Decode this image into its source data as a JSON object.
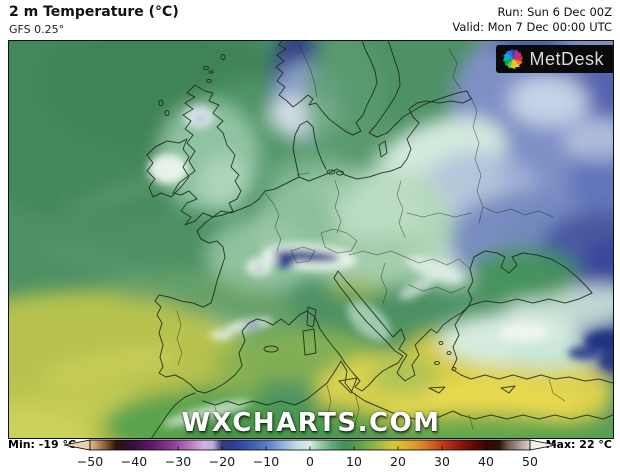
{
  "header": {
    "title": "2 m Temperature (°C)",
    "model": "GFS 0.25°",
    "run": "Run: Sun 6 Dec 00Z",
    "valid": "Valid: Mon 7 Dec 00:00 UTC"
  },
  "logo": {
    "text": "MetDesk",
    "pinwheel_colors": [
      "#e63b2e",
      "#f07d23",
      "#f5c518",
      "#bfd730",
      "#6abf4b",
      "#00a551",
      "#00b3a9",
      "#00aeef",
      "#3b6ce7",
      "#4b3f9e",
      "#8e3f98",
      "#d4237a"
    ]
  },
  "map": {
    "watermark": "WXCHARTS.COM",
    "region": "Europe"
  },
  "scalebar": {
    "min_label": "Min: -19 °C",
    "max_label": "Max: 22 °C",
    "unit": "°C",
    "range": [
      -50,
      50
    ],
    "ticks": [
      -50,
      -40,
      -30,
      -20,
      -10,
      0,
      10,
      20,
      30,
      40,
      50
    ],
    "arrow_left_color": "#e8d2af",
    "arrow_right_color": "#f3ede7",
    "gradient_stops": [
      {
        "t": -50,
        "c": "#e0bd92"
      },
      {
        "t": -47,
        "c": "#9c6a40"
      },
      {
        "t": -44,
        "c": "#2a1209"
      },
      {
        "t": -41,
        "c": "#330f33"
      },
      {
        "t": -36,
        "c": "#5d1a66"
      },
      {
        "t": -31,
        "c": "#8f3f98"
      },
      {
        "t": -27,
        "c": "#b97fc1"
      },
      {
        "t": -24,
        "c": "#d4b5dc"
      },
      {
        "t": -22,
        "c": "#b5afd2"
      },
      {
        "t": -20,
        "c": "#39387f"
      },
      {
        "t": -17,
        "c": "#2e3f95"
      },
      {
        "t": -13,
        "c": "#3f60b0"
      },
      {
        "t": -9,
        "c": "#6287ca"
      },
      {
        "t": -6,
        "c": "#93b6db"
      },
      {
        "t": -3,
        "c": "#c2dde2"
      },
      {
        "t": 0,
        "c": "#d9ece2"
      },
      {
        "t": 2,
        "c": "#a2cfb0"
      },
      {
        "t": 5,
        "c": "#63a97a"
      },
      {
        "t": 8,
        "c": "#3f8f58"
      },
      {
        "t": 11,
        "c": "#57a04e"
      },
      {
        "t": 14,
        "c": "#85b244"
      },
      {
        "t": 17,
        "c": "#b3c03c"
      },
      {
        "t": 19,
        "c": "#d3ca36"
      },
      {
        "t": 22,
        "c": "#dcae2d"
      },
      {
        "t": 25,
        "c": "#d98e27"
      },
      {
        "t": 28,
        "c": "#cc5d1e"
      },
      {
        "t": 31,
        "c": "#b63317"
      },
      {
        "t": 34,
        "c": "#92180d"
      },
      {
        "t": 37,
        "c": "#630b05"
      },
      {
        "t": 40,
        "c": "#350703"
      },
      {
        "t": 43,
        "c": "#2b1207"
      },
      {
        "t": 45,
        "c": "#6f5b52"
      },
      {
        "t": 48,
        "c": "#b5a59d"
      },
      {
        "t": 50,
        "c": "#ded3cd"
      }
    ]
  }
}
